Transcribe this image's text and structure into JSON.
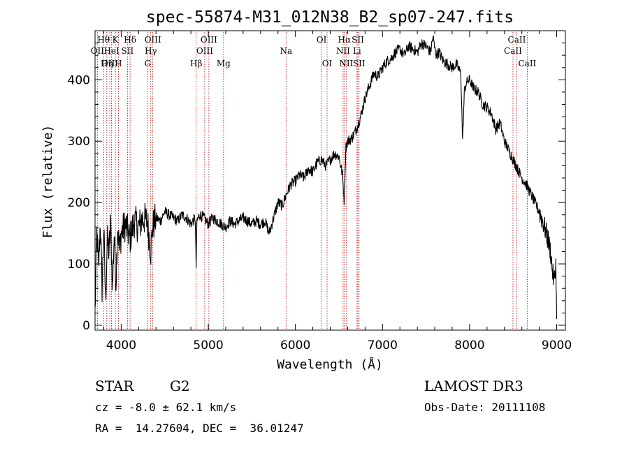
{
  "chart_data": {
    "type": "line",
    "title": "spec-55874-M31_012N38_B2_sp07-247.fits",
    "xlabel": "Wavelength (Å)",
    "ylabel": "Flux (relative)",
    "xlim": [
      3700,
      9100
    ],
    "ylim": [
      -8,
      480
    ],
    "xticks": [
      4000,
      5000,
      6000,
      7000,
      8000,
      9000
    ],
    "yticks": [
      0,
      100,
      200,
      300,
      400
    ],
    "series": [
      {
        "name": "flux",
        "color": "#000000",
        "x": [
          3700,
          3720,
          3740,
          3760,
          3780,
          3800,
          3820,
          3840,
          3860,
          3880,
          3900,
          3920,
          3940,
          3960,
          3980,
          4000,
          4050,
          4100,
          4150,
          4200,
          4250,
          4300,
          4340,
          4360,
          4400,
          4450,
          4500,
          4550,
          4600,
          4650,
          4700,
          4750,
          4800,
          4850,
          4860,
          4870,
          4900,
          4950,
          5000,
          5050,
          5100,
          5150,
          5200,
          5250,
          5300,
          5350,
          5400,
          5450,
          5500,
          5550,
          5600,
          5650,
          5700,
          5750,
          5800,
          5850,
          5900,
          5950,
          6000,
          6050,
          6100,
          6150,
          6200,
          6250,
          6300,
          6350,
          6400,
          6450,
          6500,
          6540,
          6560,
          6580,
          6600,
          6650,
          6700,
          6750,
          6800,
          6850,
          6900,
          6950,
          7000,
          7050,
          7100,
          7150,
          7200,
          7250,
          7300,
          7350,
          7400,
          7450,
          7500,
          7550,
          7580,
          7600,
          7620,
          7650,
          7700,
          7750,
          7800,
          7850,
          7900,
          7920,
          7940,
          7960,
          8000,
          8050,
          8100,
          8150,
          8200,
          8250,
          8300,
          8350,
          8400,
          8450,
          8500,
          8550,
          8600,
          8650,
          8700,
          8750,
          8800,
          8850,
          8900,
          8930,
          8950,
          8970,
          8990,
          9000
        ],
        "values": [
          20,
          150,
          90,
          170,
          60,
          155,
          40,
          140,
          120,
          160,
          60,
          150,
          70,
          165,
          120,
          150,
          165,
          140,
          170,
          160,
          175,
          170,
          120,
          160,
          175,
          170,
          185,
          180,
          175,
          170,
          180,
          175,
          165,
          175,
          95,
          170,
          180,
          175,
          165,
          175,
          170,
          165,
          160,
          170,
          165,
          170,
          175,
          170,
          165,
          170,
          165,
          170,
          150,
          175,
          200,
          195,
          215,
          230,
          235,
          245,
          240,
          255,
          250,
          265,
          270,
          260,
          270,
          280,
          275,
          245,
          205,
          290,
          300,
          305,
          320,
          340,
          370,
          390,
          410,
          405,
          420,
          430,
          435,
          445,
          450,
          440,
          455,
          450,
          445,
          460,
          455,
          445,
          470,
          450,
          440,
          445,
          430,
          425,
          420,
          425,
          410,
          300,
          380,
          395,
          400,
          385,
          380,
          360,
          355,
          345,
          320,
          330,
          300,
          285,
          270,
          255,
          240,
          230,
          215,
          200,
          185,
          165,
          140,
          120,
          90,
          70,
          100,
          10
        ]
      }
    ],
    "line_markers": [
      {
        "label": "Hθ",
        "x": 3798,
        "row": 1
      },
      {
        "label": "OII",
        "x": 3727,
        "row": 2
      },
      {
        "label": "OIII",
        "x": 3869,
        "row": 3
      },
      {
        "label": "HeI",
        "x": 3889,
        "row": 2
      },
      {
        "label": "Hη",
        "x": 3835,
        "row": 3
      },
      {
        "label": "K",
        "x": 3934,
        "row": 1
      },
      {
        "label": "H",
        "x": 3968,
        "row": 3
      },
      {
        "label": "SII",
        "x": 4072,
        "row": 2
      },
      {
        "label": "Hδ",
        "x": 4102,
        "row": 1
      },
      {
        "label": "OIII",
        "x": 4363,
        "row": 1
      },
      {
        "label": "Hγ",
        "x": 4340,
        "row": 2
      },
      {
        "label": "G",
        "x": 4304,
        "row": 3
      },
      {
        "label": "Hβ",
        "x": 4861,
        "row": 3
      },
      {
        "label": "OIII",
        "x": 5007,
        "row": 1
      },
      {
        "label": "OIII",
        "x": 4959,
        "row": 2
      },
      {
        "label": "Mg",
        "x": 5175,
        "row": 3
      },
      {
        "label": "Na",
        "x": 5893,
        "row": 2
      },
      {
        "label": "OI",
        "x": 6300,
        "row": 1
      },
      {
        "label": "OI",
        "x": 6364,
        "row": 3
      },
      {
        "label": "Hα",
        "x": 6563,
        "row": 1
      },
      {
        "label": "NII",
        "x": 6548,
        "row": 2
      },
      {
        "label": "NII",
        "x": 6583,
        "row": 3
      },
      {
        "label": "SII",
        "x": 6717,
        "row": 1
      },
      {
        "label": "Li",
        "x": 6707,
        "row": 2
      },
      {
        "label": "SII",
        "x": 6731,
        "row": 3
      },
      {
        "label": "CaII",
        "x": 8542,
        "row": 1
      },
      {
        "label": "CaII",
        "x": 8498,
        "row": 2
      },
      {
        "label": "CaII",
        "x": 8662,
        "row": 3
      }
    ]
  },
  "info": {
    "class_label": "STAR",
    "subclass": "G2",
    "survey": "LAMOST DR3",
    "cz": "cz = -8.0 ± 62.1 km/s",
    "obs_date": "Obs-Date: 20111108",
    "radec": "RA =  14.27604, DEC =  36.01247"
  }
}
